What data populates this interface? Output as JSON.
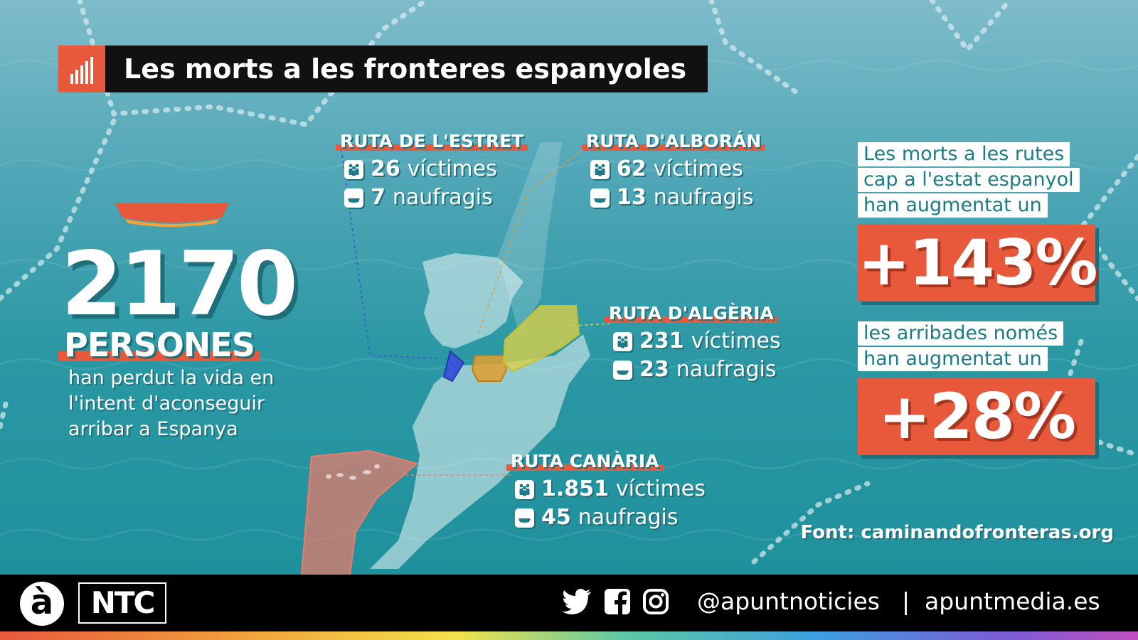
{
  "title": "Les morts a les fronteres espanyoles",
  "headline": {
    "number": "2170",
    "unit": "PERSONES",
    "description": "han perdut la vida en l'intent d'aconseguir arribar a Espanya"
  },
  "routes": [
    {
      "name": "RUTA DE L'ESTRET",
      "victims": "26",
      "victims_label": "víctimes",
      "shipwrecks": "7",
      "shipwrecks_label": "naufragis",
      "color": "#3a56d8"
    },
    {
      "name": "RUTA D'ALBORÁN",
      "victims": "62",
      "victims_label": "víctimes",
      "shipwrecks": "13",
      "shipwrecks_label": "naufragis",
      "color": "#e0a030"
    },
    {
      "name": "RUTA D'ALGÈRIA",
      "victims": "231",
      "victims_label": "víctimes",
      "shipwrecks": "23",
      "shipwrecks_label": "naufragis",
      "color": "#d8d04a"
    },
    {
      "name": "RUTA CANÀRIA",
      "victims": "1.851",
      "victims_label": "víctimes",
      "shipwrecks": "45",
      "shipwrecks_label": "naufragis",
      "color": "#f07a6a"
    }
  ],
  "stats": {
    "deaths_lines": [
      "Les morts a les rutes",
      "cap a l'estat espanyol",
      "han augmentat un"
    ],
    "deaths_increase": "+143%",
    "arrivals_lines": [
      "les arribades només",
      "han augmentat un"
    ],
    "arrivals_increase": "+28%"
  },
  "source": "Font: caminandofronteras.org",
  "footer": {
    "logo_mark": "à",
    "logo_text": "NTC",
    "social_icons": [
      "twitter-icon",
      "facebook-icon",
      "instagram-icon"
    ],
    "handle": "@apuntnoticies",
    "separator": "|",
    "website": "apuntmedia.es"
  },
  "colors": {
    "accent": "#e8593c",
    "sea": "#2b98a4",
    "dark": "#111111",
    "label_text": "#1b7b86"
  }
}
